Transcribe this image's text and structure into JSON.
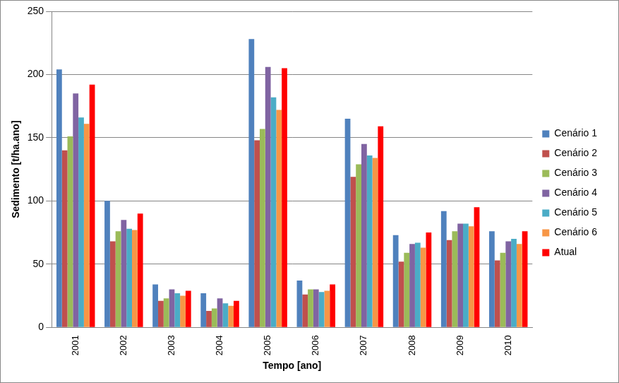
{
  "chart_data": {
    "type": "bar",
    "x_label": "Tempo [ano]",
    "y_label": "Sedimento [t/ha.ano]",
    "categories": [
      "2001",
      "2002",
      "2003",
      "2004",
      "2005",
      "2006",
      "2007",
      "2008",
      "2009",
      "2010"
    ],
    "series": [
      {
        "name": "Cenário 1",
        "color": "#4f81bd",
        "values": [
          204,
          100,
          34,
          27,
          228,
          37,
          165,
          73,
          92,
          76
        ]
      },
      {
        "name": "Cenário 2",
        "color": "#c0504d",
        "values": [
          140,
          68,
          21,
          13,
          148,
          26,
          119,
          52,
          69,
          53
        ]
      },
      {
        "name": "Cenário 3",
        "color": "#9bbb59",
        "values": [
          151,
          76,
          23,
          15,
          157,
          30,
          129,
          59,
          76,
          59
        ]
      },
      {
        "name": "Cenário 4",
        "color": "#8064a2",
        "values": [
          185,
          85,
          30,
          23,
          206,
          30,
          145,
          66,
          82,
          68
        ]
      },
      {
        "name": "Cenário 5",
        "color": "#4bacc6",
        "values": [
          166,
          78,
          27,
          19,
          182,
          28,
          136,
          67,
          82,
          70
        ]
      },
      {
        "name": "Cenário 6",
        "color": "#f79646",
        "values": [
          161,
          77,
          25,
          17,
          172,
          29,
          134,
          63,
          80,
          66
        ]
      },
      {
        "name": "Atual",
        "color": "#ff0000",
        "values": [
          192,
          90,
          29,
          21,
          205,
          34,
          159,
          75,
          95,
          76
        ]
      }
    ],
    "ylim": [
      0,
      250
    ],
    "yticks": [
      0,
      50,
      100,
      150,
      200,
      250
    ],
    "grid": true,
    "legend": "right"
  }
}
